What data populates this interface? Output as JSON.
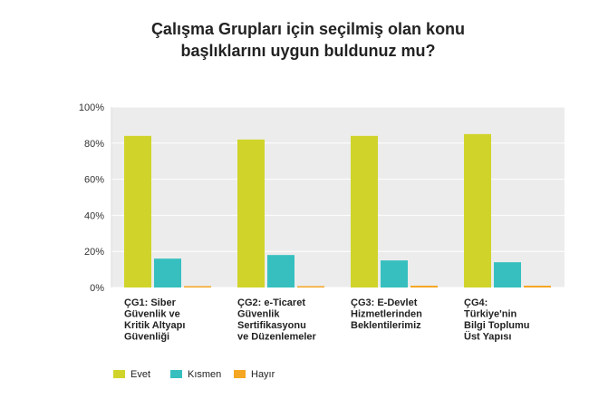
{
  "chart_data": {
    "type": "bar",
    "title_lines": [
      "Çalışma Grupları için seçilmiş olan konu",
      "başlıklarını uygun buldunuz mu?"
    ],
    "categories": [
      [
        "ÇG1: Siber",
        "Güvenlik ve",
        "Kritik Altyapı",
        "Güvenliği"
      ],
      [
        "ÇG2: e-Ticaret",
        "Güvenlik",
        "Sertifikasyonu",
        "ve Düzenlemeler"
      ],
      [
        "ÇG3: E-Devlet",
        "Hizmetlerinden",
        "Beklentilerimiz"
      ],
      [
        "ÇG4:",
        "Türkiye'nin",
        "Bilgi Toplumu",
        "Üst Yapısı"
      ]
    ],
    "series": [
      {
        "name": "Evet",
        "color": "#d0d42a",
        "values": [
          84,
          82,
          84,
          85
        ]
      },
      {
        "name": "Kısmen",
        "color": "#37bfbf",
        "values": [
          16,
          18,
          15,
          14
        ]
      },
      {
        "name": "Hayır",
        "color": "#f5a623",
        "values": [
          0,
          0,
          1,
          1
        ]
      }
    ],
    "y_ticks": [
      "0%",
      "20%",
      "40%",
      "60%",
      "80%",
      "100%"
    ],
    "ylim": [
      0,
      100
    ],
    "grid": true,
    "legend_position": "bottom-left",
    "plot_background": "#ececec"
  }
}
